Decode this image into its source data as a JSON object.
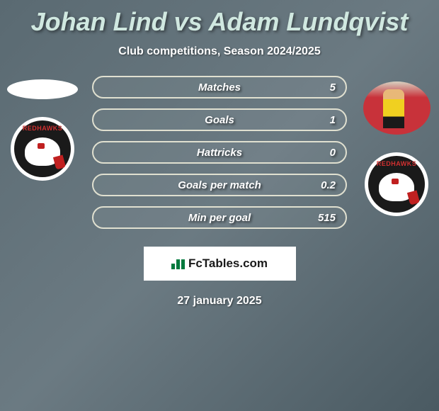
{
  "title": "Johan Lind vs Adam Lundqvist",
  "subtitle": "Club competitions, Season 2024/2025",
  "stats": [
    {
      "label": "Matches",
      "value": "5"
    },
    {
      "label": "Goals",
      "value": "1"
    },
    {
      "label": "Hattricks",
      "value": "0"
    },
    {
      "label": "Goals per match",
      "value": "0.2"
    },
    {
      "label": "Min per goal",
      "value": "515"
    }
  ],
  "crest_label": "REDHAWKS",
  "brand": "FcTables.com",
  "date": "27 january 2025",
  "colors": {
    "title": "#d0e8e0",
    "pill_border": "#e0e0d0",
    "text": "#ffffff",
    "crest_ring": "#ffffff",
    "crest_bg": "#1a1a1a",
    "crest_text": "#d03030",
    "brand_icon": "#007a3d"
  }
}
